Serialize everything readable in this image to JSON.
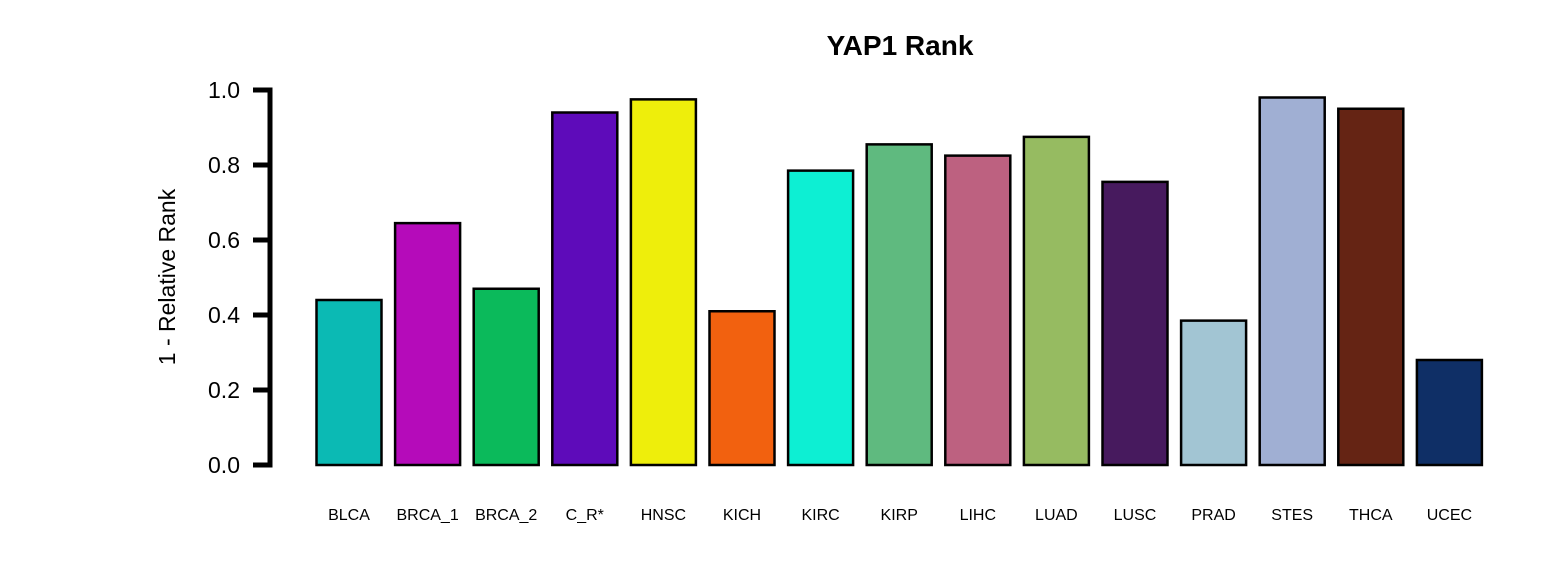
{
  "chart_data": {
    "type": "bar",
    "title": "YAP1 Rank",
    "xlabel": "",
    "ylabel": "1 - Relative Rank",
    "ylim": [
      0,
      1
    ],
    "yticks": [
      "0.0",
      "0.2",
      "0.4",
      "0.6",
      "0.8",
      "1.0"
    ],
    "grid": false,
    "categories": [
      "BLCA",
      "BRCA_1",
      "BRCA_2",
      "C_R*",
      "HNSC",
      "KICH",
      "KIRC",
      "KIRP",
      "LIHC",
      "LUAD",
      "LUSC",
      "PRAD",
      "STES",
      "THCA",
      "UCEC"
    ],
    "values": [
      0.44,
      0.645,
      0.47,
      0.94,
      0.975,
      0.41,
      0.785,
      0.855,
      0.825,
      0.875,
      0.755,
      0.385,
      0.98,
      0.95,
      0.28
    ],
    "colors": [
      "#0BBAB4",
      "#B50BBA",
      "#0BBA5B",
      "#5E0BBA",
      "#EEEE0B",
      "#F2610F",
      "#0DEFD3",
      "#5FBA7F",
      "#BD6180",
      "#96BB61",
      "#471A5E",
      "#A2C5D3",
      "#A0AFD3",
      "#652414",
      "#0F2F66"
    ]
  }
}
